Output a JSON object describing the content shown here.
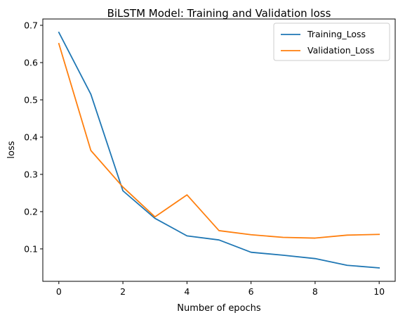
{
  "chart_data": {
    "type": "line",
    "title": "BiLSTM Model: Training and Validation loss",
    "xlabel": "Number of epochs",
    "ylabel": "loss",
    "x": [
      0,
      1,
      2,
      3,
      4,
      5,
      6,
      7,
      8,
      9,
      10
    ],
    "xlim": [
      -0.5,
      10.5
    ],
    "ylim": [
      0.013,
      0.717
    ],
    "xticks": [
      "0",
      "2",
      "4",
      "6",
      "8",
      "10"
    ],
    "yticks": [
      "0.1",
      "0.2",
      "0.3",
      "0.4",
      "0.5",
      "0.6",
      "0.7"
    ],
    "grid": false,
    "legend_position": "top-right",
    "series": [
      {
        "name": "Training_Loss",
        "color": "#1f77b4",
        "values": [
          0.681,
          0.515,
          0.256,
          0.182,
          0.135,
          0.124,
          0.091,
          0.083,
          0.074,
          0.056,
          0.049
        ]
      },
      {
        "name": "Validation_Loss",
        "color": "#ff7f0e",
        "values": [
          0.651,
          0.364,
          0.266,
          0.186,
          0.245,
          0.149,
          0.138,
          0.131,
          0.129,
          0.137,
          0.139
        ]
      }
    ]
  }
}
